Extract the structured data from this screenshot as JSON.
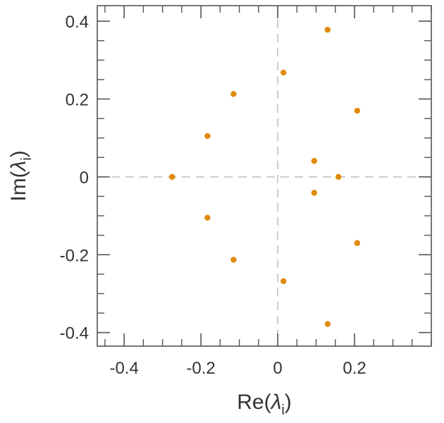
{
  "chart_data": {
    "type": "scatter",
    "title": "",
    "xlabel": {
      "prefix": "Re(",
      "symbol": "λ",
      "subscript": "i",
      "suffix": ")"
    },
    "ylabel": {
      "prefix": "Im(",
      "symbol": "λ",
      "subscript": "i",
      "suffix": ")"
    },
    "xlim": [
      -0.47,
      0.4
    ],
    "ylim": [
      -0.435,
      0.44
    ],
    "x_major_ticks": [
      -0.4,
      -0.2,
      0,
      0.2
    ],
    "x_tick_labels": [
      "-0.4",
      "-0.2",
      "0",
      "0.2"
    ],
    "x_minor_step": 0.05,
    "y_major_ticks": [
      -0.4,
      -0.2,
      0,
      0.2,
      0.4
    ],
    "y_tick_labels": [
      "-0.4",
      "-0.2",
      "0",
      "0.2",
      "0.4"
    ],
    "y_minor_step": 0.05,
    "zero_lines": "dashed",
    "grid": false,
    "legend": "none",
    "marker_color": "#e08a0b",
    "axis_color": "#555555",
    "zero_line_color": "#cccccc",
    "series": [
      {
        "points": [
          [
            0.13,
            0.378
          ],
          [
            0.015,
            0.268
          ],
          [
            -0.115,
            0.213
          ],
          [
            0.207,
            0.17
          ],
          [
            -0.183,
            0.105
          ],
          [
            0.095,
            0.041
          ],
          [
            -0.275,
            0.0
          ],
          [
            0.158,
            0.0
          ],
          [
            0.095,
            -0.041
          ],
          [
            -0.183,
            -0.105
          ],
          [
            0.207,
            -0.17
          ],
          [
            -0.115,
            -0.213
          ],
          [
            0.015,
            -0.268
          ],
          [
            0.13,
            -0.378
          ]
        ]
      }
    ]
  }
}
